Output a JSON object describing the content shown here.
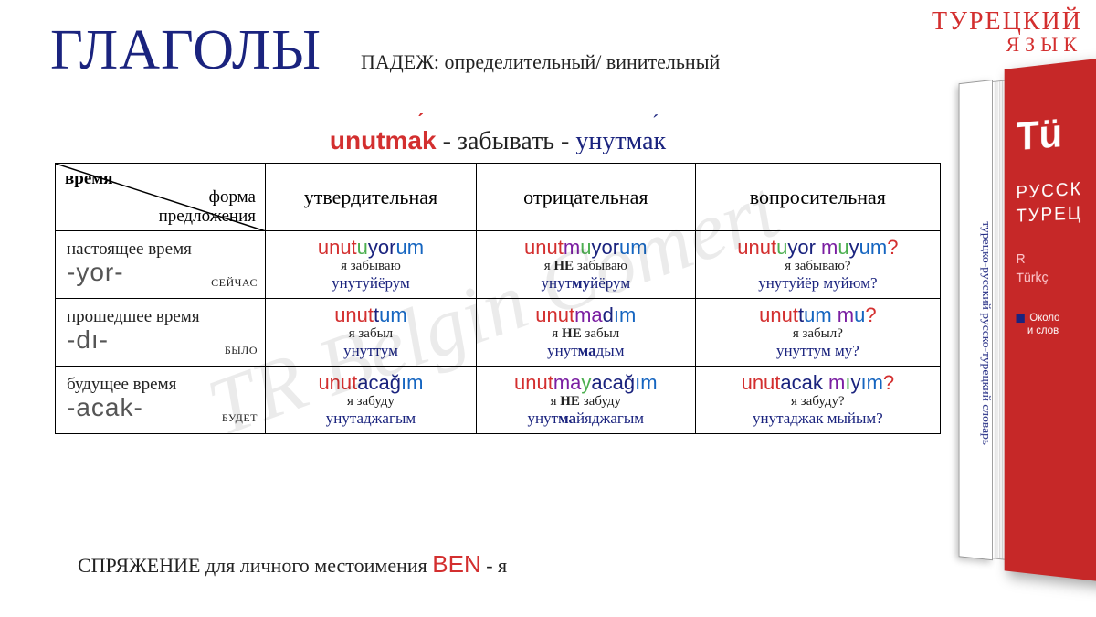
{
  "header": {
    "main_title": "ГЛАГОЛЫ",
    "subtitle": "ПАДЕЖ: определительный/ винительный",
    "corner_line1": "ТУРЕЦКИЙ",
    "corner_line2": "ЯЗЫК"
  },
  "watermark": "TR Belgin Comert",
  "verb": {
    "turkish": "unutmak",
    "dash": " - ",
    "russian": "забывать",
    "phonetic": "унутмак"
  },
  "table": {
    "diag_top": "время",
    "diag_bottom_l1": "форма",
    "diag_bottom_l2": "предложения",
    "col_headers": [
      "утвердительная",
      "отрицательная",
      "вопросительная"
    ],
    "rows": [
      {
        "tense_name": "настоящее время",
        "suffix": "-yor-",
        "tag": "СЕЙЧАС",
        "cells": [
          {
            "tr_parts": [
              {
                "t": "unut",
                "c": "c-red"
              },
              {
                "t": "u",
                "c": "c-green"
              },
              {
                "t": "yor",
                "c": "c-dark"
              },
              {
                "t": "um",
                "c": "c-blue"
              }
            ],
            "ru": "я забываю",
            "phon_parts": [
              {
                "t": "унутуйёрум",
                "b": false
              }
            ]
          },
          {
            "tr_parts": [
              {
                "t": "unut",
                "c": "c-red"
              },
              {
                "t": "m",
                "c": "c-purple"
              },
              {
                "t": "u",
                "c": "c-green"
              },
              {
                "t": "yor",
                "c": "c-dark"
              },
              {
                "t": "um",
                "c": "c-blue"
              }
            ],
            "ru_pre": "я ",
            "ru_neg": "НЕ",
            "ru_post": " забываю",
            "phon_parts": [
              {
                "t": "унут",
                "b": false
              },
              {
                "t": "му",
                "b": true
              },
              {
                "t": "йёрум",
                "b": false
              }
            ]
          },
          {
            "tr_parts": [
              {
                "t": "unut",
                "c": "c-red"
              },
              {
                "t": "u",
                "c": "c-green"
              },
              {
                "t": "yor ",
                "c": "c-dark"
              },
              {
                "t": "m",
                "c": "c-purple"
              },
              {
                "t": "u",
                "c": "c-green"
              },
              {
                "t": "y",
                "c": "c-dark"
              },
              {
                "t": "um",
                "c": "c-blue"
              },
              {
                "t": "?",
                "c": "c-red"
              }
            ],
            "ru": "я забываю?",
            "phon_parts": [
              {
                "t": "унутуйёр муйюм?",
                "b": false
              }
            ]
          }
        ]
      },
      {
        "tense_name": "прошедшее время",
        "suffix": "-dı-",
        "tag": "БЫЛО",
        "cells": [
          {
            "tr_parts": [
              {
                "t": "unut",
                "c": "c-red"
              },
              {
                "t": "t",
                "c": "c-dark"
              },
              {
                "t": "um",
                "c": "c-blue"
              }
            ],
            "ru": "я забыл",
            "phon_parts": [
              {
                "t": "унуттум",
                "b": false
              }
            ]
          },
          {
            "tr_parts": [
              {
                "t": "unut",
                "c": "c-red"
              },
              {
                "t": "ma",
                "c": "c-purple"
              },
              {
                "t": "d",
                "c": "c-dark"
              },
              {
                "t": "ım",
                "c": "c-blue"
              }
            ],
            "ru_pre": "я ",
            "ru_neg": "НЕ",
            "ru_post": " забыл",
            "phon_parts": [
              {
                "t": "унут",
                "b": false
              },
              {
                "t": "ма",
                "b": true
              },
              {
                "t": "дым",
                "b": false
              }
            ]
          },
          {
            "tr_parts": [
              {
                "t": "unut",
                "c": "c-red"
              },
              {
                "t": "t",
                "c": "c-dark"
              },
              {
                "t": "um ",
                "c": "c-blue"
              },
              {
                "t": "m",
                "c": "c-purple"
              },
              {
                "t": "u",
                "c": "c-blue"
              },
              {
                "t": "?",
                "c": "c-red"
              }
            ],
            "ru": "я забыл?",
            "phon_parts": [
              {
                "t": "унуттум му?",
                "b": false
              }
            ]
          }
        ]
      },
      {
        "tense_name": "будущее время",
        "suffix": "-acak-",
        "tag": "БУДЕТ",
        "cells": [
          {
            "tr_parts": [
              {
                "t": "unut",
                "c": "c-red"
              },
              {
                "t": "acağ",
                "c": "c-dark"
              },
              {
                "t": "ım",
                "c": "c-blue"
              }
            ],
            "ru": "я забуду",
            "phon_parts": [
              {
                "t": "унутаджагым",
                "b": false
              }
            ]
          },
          {
            "tr_parts": [
              {
                "t": "unut",
                "c": "c-red"
              },
              {
                "t": "ma",
                "c": "c-purple"
              },
              {
                "t": "y",
                "c": "c-green"
              },
              {
                "t": "acağ",
                "c": "c-dark"
              },
              {
                "t": "ım",
                "c": "c-blue"
              }
            ],
            "ru_pre": "я ",
            "ru_neg": "НЕ",
            "ru_post": " забуду",
            "phon_parts": [
              {
                "t": "унут",
                "b": false
              },
              {
                "t": "ма",
                "b": true
              },
              {
                "t": "йяджагым",
                "b": false
              }
            ]
          },
          {
            "tr_parts": [
              {
                "t": "unut",
                "c": "c-red"
              },
              {
                "t": "acak ",
                "c": "c-dark"
              },
              {
                "t": "m",
                "c": "c-purple"
              },
              {
                "t": "ı",
                "c": "c-green"
              },
              {
                "t": "y",
                "c": "c-dark"
              },
              {
                "t": "ım",
                "c": "c-blue"
              },
              {
                "t": "?",
                "c": "c-red"
              }
            ],
            "ru": "я забуду?",
            "phon_parts": [
              {
                "t": "унутаджак мыйым?",
                "b": false
              }
            ]
          }
        ]
      }
    ]
  },
  "footer": {
    "text_before": "СПРЯЖЕНИЕ для личного местоимения ",
    "ben": "BEN",
    "text_after": " - я"
  },
  "book": {
    "spine": "турецко-русский русско-турецкий словарь",
    "big": "Tü",
    "mid1": "РУССК",
    "mid2": "ТУРЕЦ",
    "small1": "R",
    "small2": "Türkç",
    "tiny1": "Около",
    "tiny2": "и слов"
  },
  "colors": {
    "red": "#d32f2f",
    "dark_blue": "#1a237e",
    "blue": "#1565c0",
    "green": "#4caf50",
    "purple": "#7b1fa2",
    "bg": "#ffffff",
    "border": "#000000"
  }
}
